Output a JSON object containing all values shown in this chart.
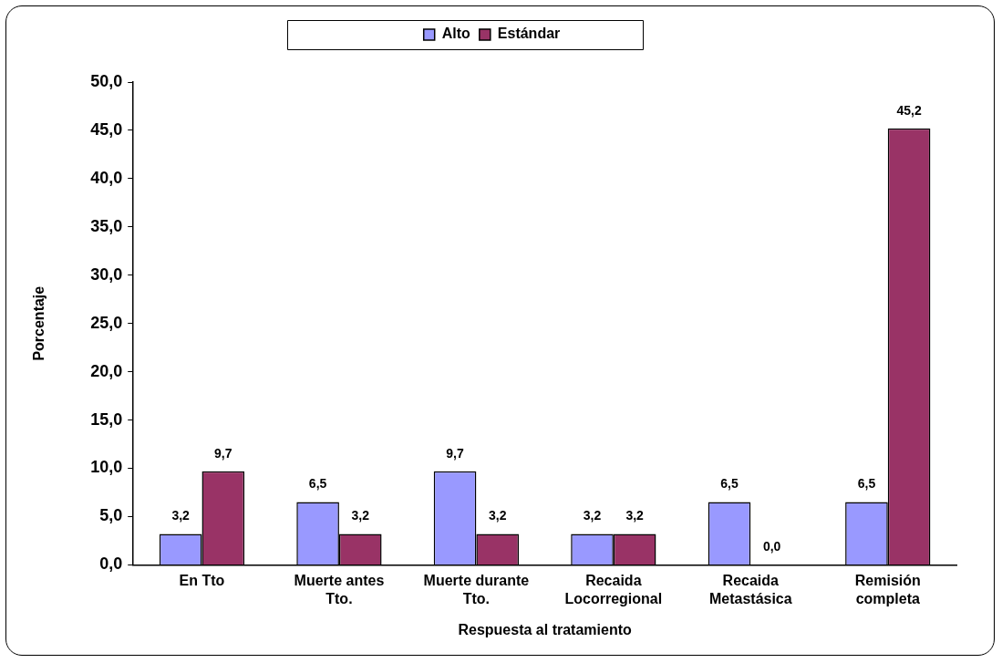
{
  "chart_data": {
    "type": "bar",
    "xlabel": "Respuesta al tratamiento",
    "ylabel": "Porcentaje",
    "categories": [
      "En Tto",
      "Muerte antes Tto.",
      "Muerte durante Tto.",
      "Recaida Locorregional",
      "Recaida Metastásica",
      "Remisión completa"
    ],
    "series": [
      {
        "name": "Alto",
        "color": "#9999ff",
        "values": [
          3.2,
          6.5,
          9.7,
          3.2,
          6.5,
          6.5
        ]
      },
      {
        "name": "Estándar",
        "color": "#993366",
        "values": [
          9.7,
          3.2,
          3.2,
          3.2,
          0.0,
          45.2
        ]
      }
    ],
    "ylim": [
      0,
      50
    ],
    "yticks": [
      {
        "value": 0,
        "label": "0,0"
      },
      {
        "value": 5,
        "label": "5,0"
      },
      {
        "value": 10,
        "label": "10,0"
      },
      {
        "value": 15,
        "label": "15,0"
      },
      {
        "value": 20,
        "label": "20,0"
      },
      {
        "value": 25,
        "label": "25,0"
      },
      {
        "value": 30,
        "label": "30,0"
      },
      {
        "value": 35,
        "label": "35,0"
      },
      {
        "value": 40,
        "label": "40,0"
      },
      {
        "value": 45,
        "label": "45,0"
      },
      {
        "value": 50,
        "label": "50,0"
      }
    ],
    "value_labels": [
      [
        "3,2",
        "6,5",
        "9,7",
        "3,2",
        "6,5",
        "6,5"
      ],
      [
        "9,7",
        "3,2",
        "3,2",
        "3,2",
        "0,0",
        "45,2"
      ]
    ],
    "grid": false,
    "legend": "top"
  }
}
